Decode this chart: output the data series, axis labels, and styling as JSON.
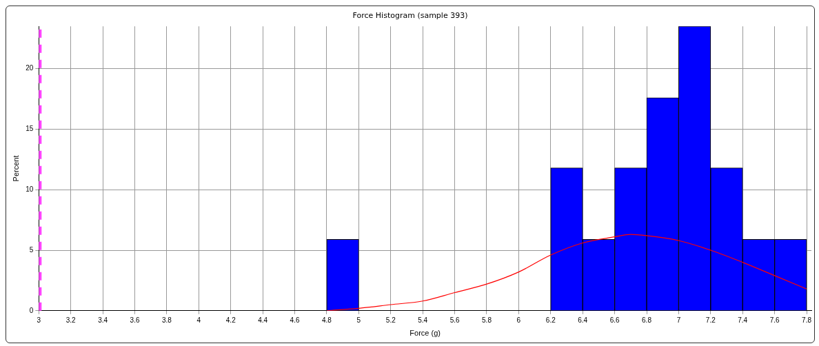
{
  "chart_data": {
    "type": "histogram",
    "title": "Force Histogram (sample 393)",
    "xlabel": "Force (g)",
    "ylabel": "Percent",
    "series": [
      {
        "type": "histogram",
        "color": "#0000ff",
        "bins": [
          3,
          3.2,
          3.4,
          3.6,
          3.8,
          4,
          4.2,
          4.4,
          4.6,
          4.8,
          5,
          5.2,
          5.4,
          5.6,
          5.8,
          6,
          6.2,
          6.4,
          6.6,
          6.8,
          7,
          7.2,
          7.4,
          7.6,
          7.8
        ],
        "values": [
          0,
          0,
          0,
          0,
          0,
          0,
          0,
          0,
          0,
          5.9,
          0,
          0,
          0,
          0,
          0,
          0,
          11.8,
          5.9,
          11.8,
          17.6,
          23.5,
          11.8,
          5.9,
          5.9
        ]
      },
      {
        "type": "line",
        "color": "#ff0000",
        "x": [
          4.8,
          5,
          5.2,
          5.4,
          5.6,
          5.8,
          6,
          6.2,
          6.4,
          6.6,
          6.7,
          6.8,
          7,
          7.2,
          7.4,
          7.6,
          7.8
        ],
        "values": [
          0,
          0.2,
          0.5,
          0.8,
          1.5,
          2.2,
          3.2,
          4.6,
          5.6,
          6.1,
          6.3,
          6.2,
          5.8,
          5,
          4,
          2.9,
          1.8
        ]
      }
    ],
    "xlim": [
      3,
      7.83
    ],
    "xticks": [
      3,
      3.2,
      3.4,
      3.6,
      3.8,
      4,
      4.2,
      4.4,
      4.6,
      4.8,
      5,
      5.2,
      5.4,
      5.6,
      5.8,
      6,
      6.2,
      6.4,
      6.6,
      6.8,
      7,
      7.2,
      7.4,
      7.6,
      7.8
    ],
    "ylim": [
      0,
      23.5
    ],
    "yticks": [
      0,
      5,
      10,
      15,
      20
    ],
    "grid": true,
    "marker": "none",
    "line_style": "solid",
    "ref_lines": [
      {
        "axis": "x",
        "value": 3,
        "color": "#ff44ff",
        "line_style": "dashed"
      }
    ]
  }
}
